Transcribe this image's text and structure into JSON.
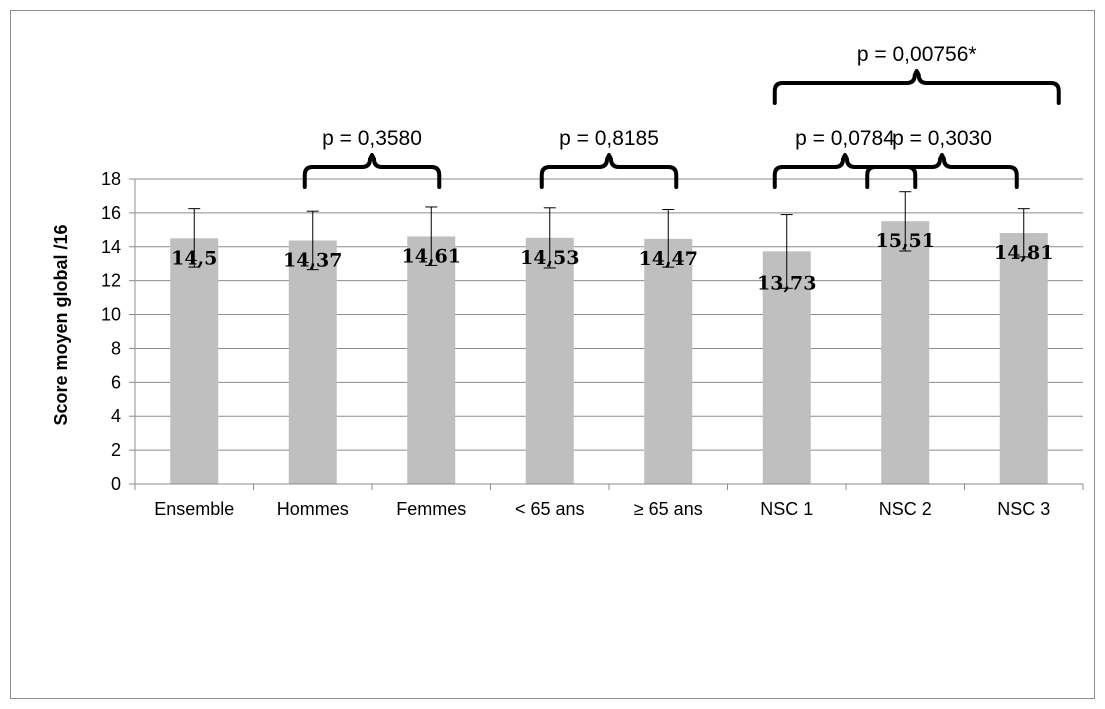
{
  "chart_data": {
    "type": "bar",
    "categories": [
      "Ensemble",
      "Hommes",
      "Femmes",
      "< 65 ans",
      "≥ 65 ans",
      "NSC 1",
      "NSC 2",
      "NSC 3"
    ],
    "values": [
      14.5,
      14.37,
      14.61,
      14.53,
      14.47,
      13.73,
      15.51,
      14.81
    ],
    "data_labels": [
      "14,5",
      "14,37",
      "14,61",
      "14,53",
      "14,47",
      "13,73",
      "15,51",
      "14,81"
    ],
    "error_bars": [
      [
        12.8,
        16.25
      ],
      [
        12.65,
        16.1
      ],
      [
        12.9,
        16.35
      ],
      [
        12.75,
        16.3
      ],
      [
        12.8,
        16.2
      ],
      [
        11.55,
        15.9
      ],
      [
        13.75,
        17.25
      ],
      [
        13.4,
        16.25
      ]
    ],
    "ylabel": "Score moyen global  /16",
    "ylim": [
      0,
      18
    ],
    "yticks": [
      0,
      2,
      4,
      6,
      8,
      10,
      12,
      14,
      16,
      18
    ],
    "grid": true,
    "bar_color": "#bfbfbf",
    "annotations": [
      {
        "label": "p = 0,3580",
        "from": 1,
        "to": 2,
        "level": 0
      },
      {
        "label": "p = 0,8185",
        "from": 3,
        "to": 4,
        "level": 0
      },
      {
        "label": "p = 0,0784",
        "from": 5,
        "to": 6,
        "level": 0
      },
      {
        "label": "p = 0,3030",
        "from": 6,
        "to": 7,
        "level": 0
      },
      {
        "label": "p = 0,00756*",
        "from": 5,
        "to": 7,
        "level": 1
      }
    ]
  }
}
